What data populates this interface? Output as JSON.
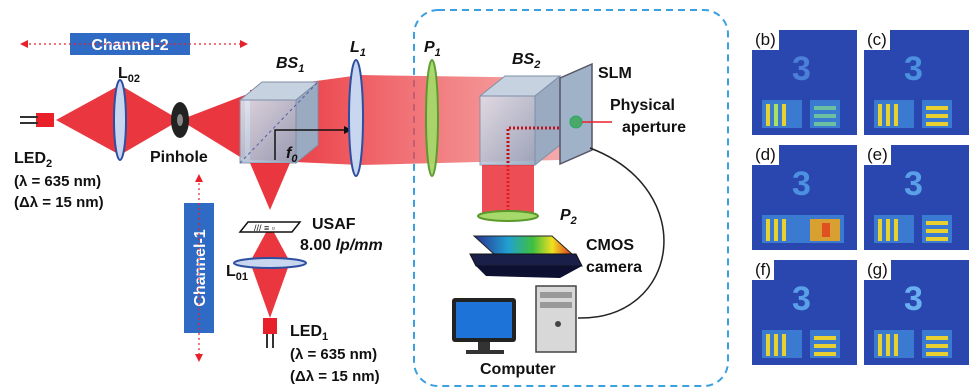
{
  "channel2": "Channel-2",
  "channel1": "Channel-1",
  "led2": {
    "name": "LED",
    "sub": "2",
    "wavelength": "(λ = 635 nm)",
    "bandwidth": "(Δλ = 15 nm)"
  },
  "led1": {
    "name": "LED",
    "sub": "1",
    "wavelength": "(λ = 635 nm)",
    "bandwidth": "(Δλ = 15 nm)"
  },
  "lens_l02": {
    "name": "L",
    "sub": "02"
  },
  "lens_l01": {
    "name": "L",
    "sub": "01"
  },
  "lens_l1": {
    "name": "L",
    "sub": "1"
  },
  "pinhole": "Pinhole",
  "bs1": {
    "name": "BS",
    "sub": "1"
  },
  "bs2": {
    "name": "BS",
    "sub": "2"
  },
  "polarizer_p1": {
    "name": "P",
    "sub": "1"
  },
  "polarizer_p2": {
    "name": "P",
    "sub": "2"
  },
  "focal": {
    "name": "f",
    "sub": "0"
  },
  "usaf": {
    "name": "USAF",
    "freq_value": "8.00",
    "freq_unit": "lp/mm"
  },
  "slm": "SLM",
  "physical_aperture": {
    "line1": "Physical",
    "line2": "aperture"
  },
  "cmos": {
    "line1": "CMOS",
    "line2": "camera"
  },
  "computer": "Computer",
  "panels": [
    {
      "label": "(b)"
    },
    {
      "label": "(c)"
    },
    {
      "label": "(d)"
    },
    {
      "label": "(e)"
    },
    {
      "label": "(f)"
    },
    {
      "label": "(g)"
    }
  ],
  "colors": {
    "beam": "#e8202a",
    "lens": "#2e4fa0",
    "channel_box": "#2f6bc4",
    "dashed": "#3aa0e0",
    "polarizer": "#7ac142"
  }
}
